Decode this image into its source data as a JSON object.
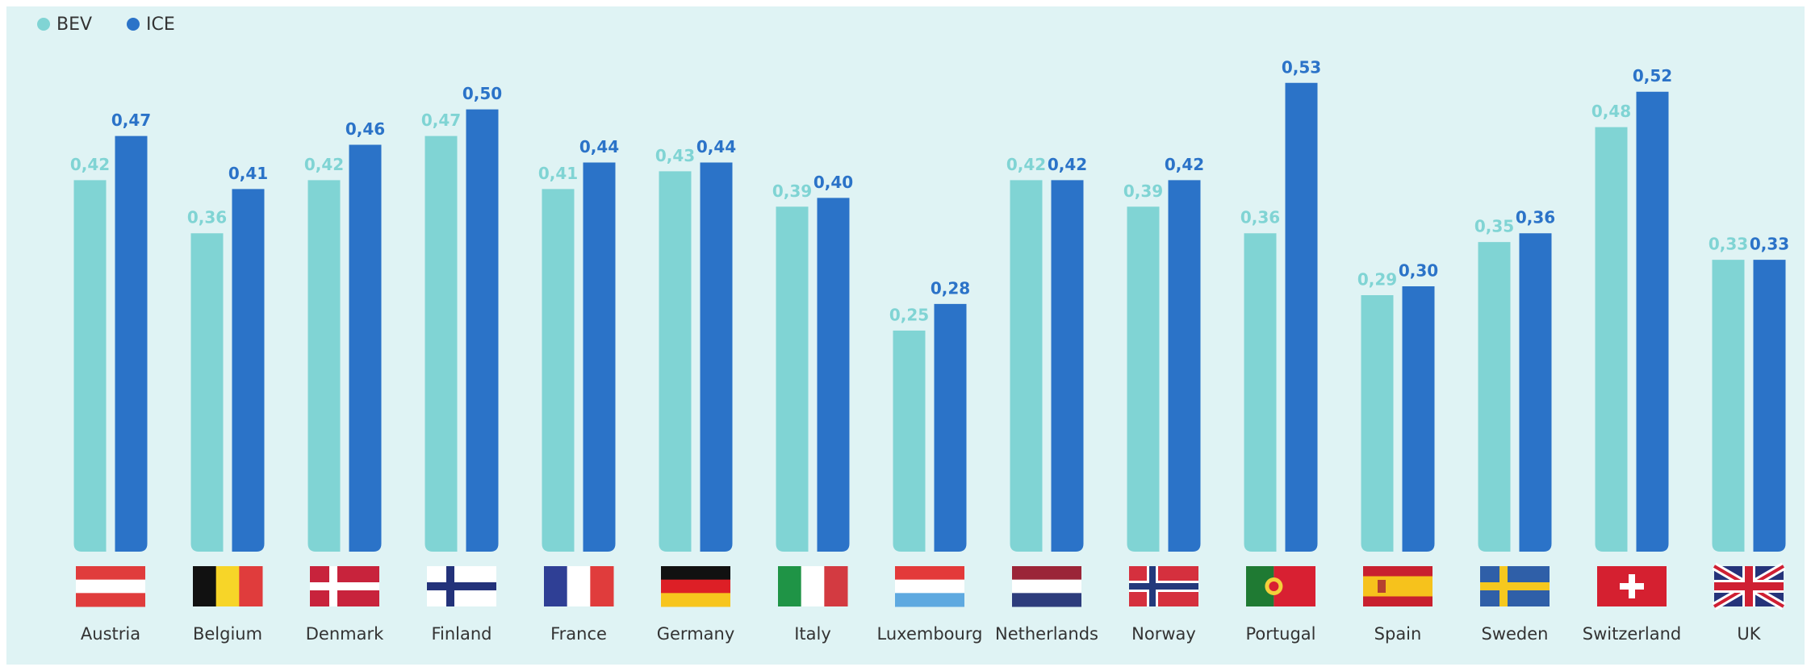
{
  "chart_data": {
    "type": "bar",
    "categories": [
      "Austria",
      "Belgium",
      "Denmark",
      "Finland",
      "France",
      "Germany",
      "Italy",
      "Luxembourg",
      "Netherlands",
      "Norway",
      "Portugal",
      "Spain",
      "Sweden",
      "Switzerland",
      "UK"
    ],
    "series": [
      {
        "name": "BEV",
        "color": "#80d4d4",
        "values": [
          0.42,
          0.36,
          0.42,
          0.47,
          0.41,
          0.43,
          0.39,
          0.25,
          0.42,
          0.39,
          0.36,
          0.29,
          0.35,
          0.48,
          0.33
        ],
        "value_labels": [
          "0,42",
          "0,36",
          "0,42",
          "0,47",
          "0,41",
          "0,43",
          "0,39",
          "0,25",
          "0,42",
          "0,39",
          "0,36",
          "0,29",
          "0,35",
          "0,48",
          "0,33"
        ]
      },
      {
        "name": "ICE",
        "color": "#2b73c8",
        "values": [
          0.47,
          0.41,
          0.46,
          0.5,
          0.44,
          0.44,
          0.4,
          0.28,
          0.42,
          0.42,
          0.53,
          0.3,
          0.36,
          0.52,
          0.33
        ],
        "value_labels": [
          "0,47",
          "0,41",
          "0,46",
          "0,50",
          "0,44",
          "0,44",
          "0,40",
          "0,28",
          "0,42",
          "0,42",
          "0,53",
          "0,30",
          "0,36",
          "0,52",
          "0,33"
        ]
      }
    ],
    "ylim": [
      0,
      0.6
    ],
    "legend": "top-left"
  }
}
